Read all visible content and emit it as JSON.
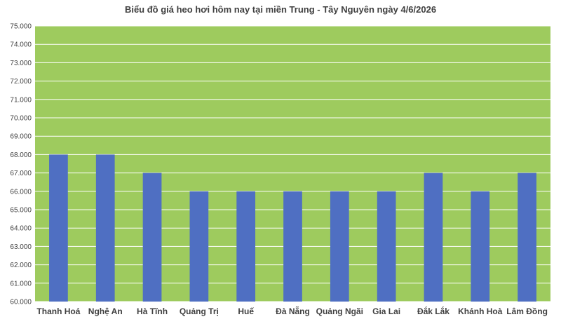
{
  "colors": {
    "plot_background": "#9ecb5e",
    "bar": "#4f6fc2",
    "gridline": "#ffffff",
    "text": "#404040"
  },
  "chart_data": {
    "type": "bar",
    "title": "Biểu đồ giá heo hơi hôm nay tại miền Trung - Tây Nguyên ngày 4/6/2026",
    "xlabel": "",
    "ylabel": "",
    "categories": [
      "Thanh Hoá",
      "Nghệ An",
      "Hà Tĩnh",
      "Quảng Trị",
      "Huế",
      "Đà Nẵng",
      "Quảng Ngãi",
      "Gia Lai",
      "Đắk Lắk",
      "Khánh Hoà",
      "Lâm Đồng"
    ],
    "values": [
      68000,
      68000,
      67000,
      66000,
      66000,
      66000,
      66000,
      66000,
      67000,
      66000,
      67000
    ],
    "ylim": [
      60000,
      75000
    ],
    "yticks": [
      60000,
      61000,
      62000,
      63000,
      64000,
      65000,
      66000,
      67000,
      68000,
      69000,
      70000,
      71000,
      72000,
      73000,
      74000,
      75000
    ],
    "ytick_labels": [
      "60.000",
      "61.000",
      "62.000",
      "63.000",
      "64.000",
      "65.000",
      "66.000",
      "67.000",
      "68.000",
      "69.000",
      "70.000",
      "71.000",
      "72.000",
      "73.000",
      "74.000",
      "75.000"
    ],
    "grid": true,
    "legend": "none"
  }
}
